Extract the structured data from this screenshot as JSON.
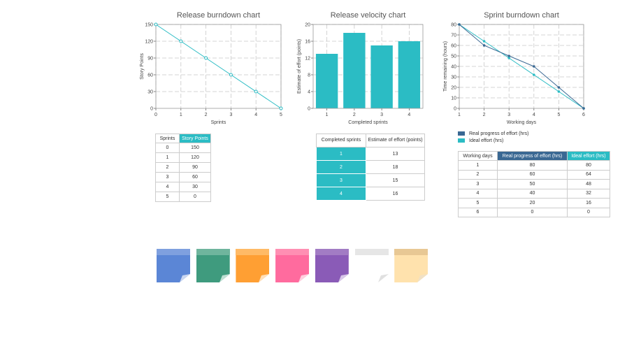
{
  "colors": {
    "teal": "#2bbcc4",
    "navy": "#3a6893",
    "grid": "#c8c8c8"
  },
  "chart_data": [
    {
      "id": "release-burndown",
      "type": "line",
      "title": "Release burndown chart",
      "xlabel": "Sprints",
      "ylabel": "Story Points",
      "x": [
        0,
        1,
        2,
        3,
        4,
        5
      ],
      "xlim": [
        0,
        5
      ],
      "ylim": [
        0,
        150
      ],
      "yticks": [
        0,
        30,
        60,
        90,
        120,
        150
      ],
      "grid": true,
      "series": [
        {
          "values": [
            150,
            120,
            90,
            60,
            30,
            0
          ],
          "color": "#2bbcc4"
        }
      ]
    },
    {
      "id": "release-velocity",
      "type": "bar",
      "title": "Release velocity chart",
      "xlabel": "Completed sprints",
      "ylabel": "Estimate of effort (points)",
      "categories": [
        "1",
        "2",
        "3",
        "4"
      ],
      "values": [
        13,
        18,
        15,
        16
      ],
      "ylim": [
        0,
        20
      ],
      "yticks": [
        0,
        4,
        8,
        12,
        16,
        20
      ],
      "grid": true,
      "color": "#2bbcc4"
    },
    {
      "id": "sprint-burndown",
      "type": "line",
      "title": "Sprint burndown chart",
      "xlabel": "Working days",
      "ylabel": "Time remaining (hours)",
      "x": [
        1,
        2,
        3,
        4,
        5,
        6
      ],
      "xlim": [
        1,
        6
      ],
      "ylim": [
        0,
        80
      ],
      "yticks": [
        0,
        10,
        20,
        30,
        40,
        50,
        60,
        70,
        80
      ],
      "grid": true,
      "legend_position": "bottom-left",
      "series": [
        {
          "name": "Real progress of effort (hrs)",
          "values": [
            80,
            60,
            50,
            40,
            20,
            0
          ],
          "color": "#3a6893"
        },
        {
          "name": "Ideal effort (hrs)",
          "values": [
            80,
            64,
            48,
            32,
            16,
            0
          ],
          "color": "#2bbcc4"
        }
      ]
    }
  ],
  "tables": {
    "release_burndown": {
      "headers": [
        "Sprints",
        "Story Points"
      ],
      "rows": [
        [
          "0",
          "150"
        ],
        [
          "1",
          "120"
        ],
        [
          "2",
          "90"
        ],
        [
          "3",
          "60"
        ],
        [
          "4",
          "30"
        ],
        [
          "5",
          "0"
        ]
      ]
    },
    "release_velocity": {
      "headers": [
        "Completed sprints",
        "Estimate of effort (points)"
      ],
      "rows": [
        [
          "1",
          "13"
        ],
        [
          "2",
          "18"
        ],
        [
          "3",
          "15"
        ],
        [
          "4",
          "16"
        ]
      ]
    },
    "sprint_burndown": {
      "headers": [
        "Working days",
        "Real progress of effort (hrs)",
        "Ideal effort (hrs)"
      ],
      "rows": [
        [
          "1",
          "80",
          "80"
        ],
        [
          "2",
          "60",
          "64"
        ],
        [
          "3",
          "50",
          "48"
        ],
        [
          "4",
          "40",
          "32"
        ],
        [
          "5",
          "20",
          "16"
        ],
        [
          "6",
          "0",
          "0"
        ]
      ]
    }
  },
  "sticky_notes": [
    {
      "name": "blue",
      "band": "#7fa0df",
      "body": "#5b86d6",
      "fold": "#c9d6f0"
    },
    {
      "name": "green",
      "band": "#6fb59d",
      "body": "#3f9b7e",
      "fold": "#bfdfd3"
    },
    {
      "name": "orange",
      "band": "#ffba66",
      "body": "#ff9f33",
      "fold": "#ffe0bb"
    },
    {
      "name": "pink",
      "band": "#ff8fb3",
      "body": "#ff6b9e",
      "fold": "#ffd0df"
    },
    {
      "name": "purple",
      "band": "#a27cc4",
      "body": "#8a5bb7",
      "fold": "#d8c7e8"
    },
    {
      "name": "white",
      "band": "#e6e6e6",
      "body": "#ffffff",
      "fold": "#e0e0e0"
    },
    {
      "name": "beige",
      "band": "#e8c894",
      "body": "#ffe2ad",
      "fold": "#f1e1c5"
    }
  ]
}
